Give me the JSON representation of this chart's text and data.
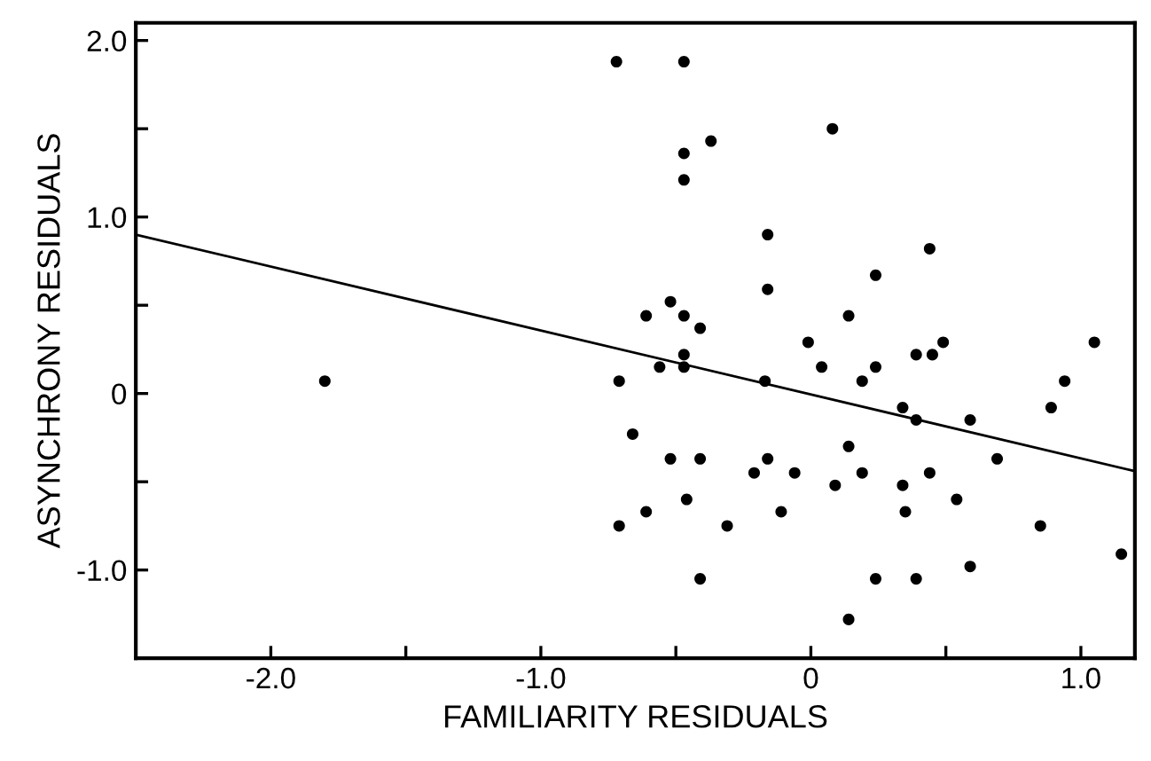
{
  "chart_data": {
    "type": "scatter",
    "xlabel": "FAMILIARITY RESIDUALS",
    "ylabel": "ASYNCHRONY RESIDUALS",
    "xlim": [
      -2.5,
      1.2
    ],
    "ylim": [
      -1.5,
      2.1
    ],
    "xticks": [
      {
        "value": -2.0,
        "label": "-2.0"
      },
      {
        "value": -1.5,
        "label": null
      },
      {
        "value": -1.0,
        "label": "-1.0"
      },
      {
        "value": -0.5,
        "label": null
      },
      0,
      {
        "value": 0.5,
        "label": null
      },
      {
        "value": 1.0,
        "label": "1.0"
      }
    ],
    "yticks": [
      {
        "value": -1.0,
        "label": "-1.0"
      },
      {
        "value": -0.5,
        "label": null
      },
      0,
      {
        "value": 0.5,
        "label": null
      },
      {
        "value": 1.0,
        "label": "1.0"
      },
      {
        "value": 1.5,
        "label": null
      },
      {
        "value": 2.0,
        "label": "2.0"
      }
    ],
    "grid": false,
    "marker": "circle",
    "series": [
      {
        "color": "#000000",
        "x": [
          -1.8,
          -0.72,
          -0.47,
          0.08,
          -0.37,
          -0.47,
          -0.47,
          -0.16,
          0.44,
          0.24,
          -0.16,
          -0.52,
          -0.61,
          -0.47,
          0.14,
          -0.41,
          -0.01,
          0.49,
          1.05,
          -0.47,
          0.39,
          0.45,
          -0.56,
          -0.47,
          0.04,
          0.24,
          -0.71,
          -0.17,
          0.19,
          0.94,
          0.34,
          0.89,
          0.39,
          0.59,
          -0.66,
          0.14,
          -0.52,
          -0.41,
          -0.16,
          0.69,
          -0.21,
          -0.06,
          0.19,
          0.44,
          0.09,
          0.34,
          -0.46,
          0.54,
          -0.61,
          -0.11,
          0.35,
          -0.71,
          -0.31,
          0.85,
          1.15,
          0.59,
          -0.41,
          0.24,
          0.39,
          0.14
        ],
        "values": [
          0.07,
          1.88,
          1.88,
          1.5,
          1.43,
          1.36,
          1.21,
          0.9,
          0.82,
          0.67,
          0.59,
          0.52,
          0.44,
          0.44,
          0.44,
          0.37,
          0.29,
          0.29,
          0.29,
          0.22,
          0.22,
          0.22,
          0.15,
          0.15,
          0.15,
          0.15,
          0.07,
          0.07,
          0.07,
          0.07,
          -0.08,
          -0.08,
          -0.15,
          -0.15,
          -0.23,
          -0.3,
          -0.37,
          -0.37,
          -0.37,
          -0.37,
          -0.45,
          -0.45,
          -0.45,
          -0.45,
          -0.52,
          -0.52,
          -0.6,
          -0.6,
          -0.67,
          -0.67,
          -0.67,
          -0.75,
          -0.75,
          -0.75,
          -0.91,
          -0.98,
          -1.05,
          -1.05,
          -1.05,
          -1.28
        ]
      },
      {
        "type": "line",
        "color": "#000000",
        "marker": "none",
        "line_style": "solid",
        "x": [
          -2.5,
          1.2
        ],
        "values": [
          0.9,
          -0.44
        ]
      }
    ]
  }
}
